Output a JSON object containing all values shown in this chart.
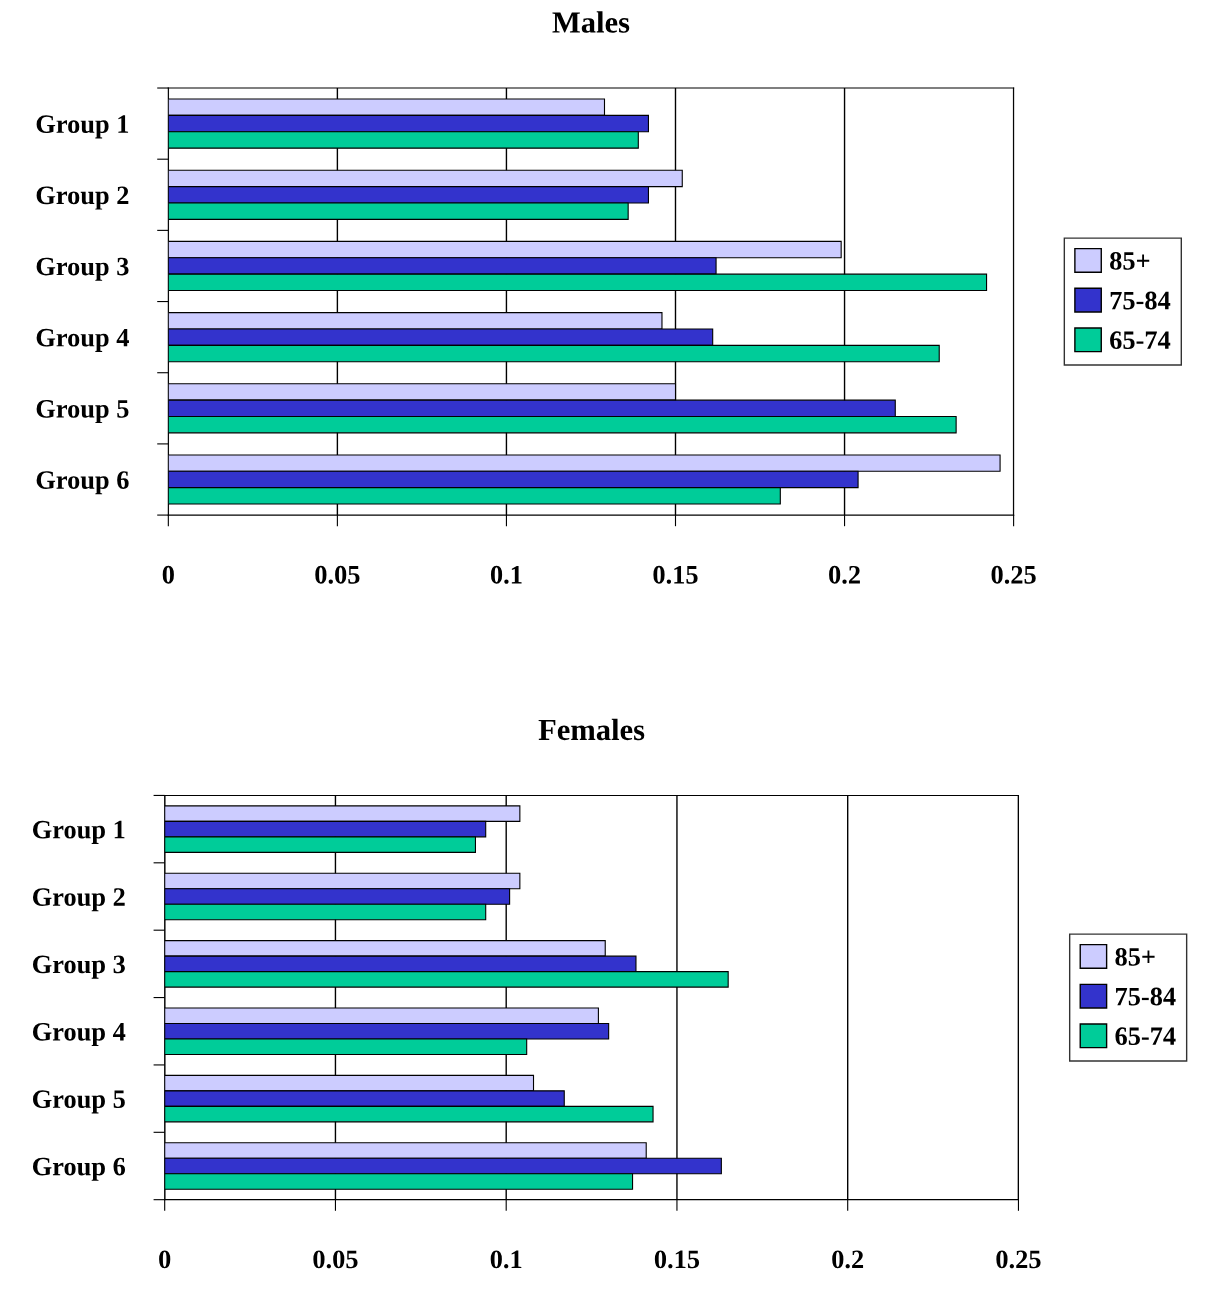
{
  "chart_data": [
    {
      "type": "bar",
      "orientation": "horizontal",
      "title": "Males",
      "categories": [
        "Group 1",
        "Group 2",
        "Group 3",
        "Group 4",
        "Group 5",
        "Group 6"
      ],
      "series": [
        {
          "name": "85+",
          "color": "#ccccff",
          "values": [
            0.129,
            0.152,
            0.199,
            0.146,
            0.15,
            0.246
          ]
        },
        {
          "name": "75-84",
          "color": "#3333cc",
          "values": [
            0.142,
            0.142,
            0.162,
            0.161,
            0.215,
            0.204
          ]
        },
        {
          "name": "65-74",
          "color": "#00cc99",
          "values": [
            0.139,
            0.136,
            0.242,
            0.228,
            0.233,
            0.181
          ]
        }
      ],
      "xlim": [
        0,
        0.25
      ],
      "xticks": [
        0,
        0.05,
        0.1,
        0.15,
        0.2,
        0.25
      ],
      "grid": "x",
      "legend": "right"
    },
    {
      "type": "bar",
      "orientation": "horizontal",
      "title": "Females",
      "categories": [
        "Group 1",
        "Group 2",
        "Group 3",
        "Group 4",
        "Group 5",
        "Group 6"
      ],
      "series": [
        {
          "name": "85+",
          "color": "#ccccff",
          "values": [
            0.104,
            0.104,
            0.129,
            0.127,
            0.108,
            0.141
          ]
        },
        {
          "name": "75-84",
          "color": "#3333cc",
          "values": [
            0.094,
            0.101,
            0.138,
            0.13,
            0.117,
            0.163
          ]
        },
        {
          "name": "65-74",
          "color": "#00cc99",
          "values": [
            0.091,
            0.094,
            0.165,
            0.106,
            0.143,
            0.137
          ]
        }
      ],
      "xlim": [
        0,
        0.25
      ],
      "xticks": [
        0,
        0.05,
        0.1,
        0.15,
        0.2,
        0.25
      ],
      "grid": "x",
      "legend": "right"
    }
  ]
}
